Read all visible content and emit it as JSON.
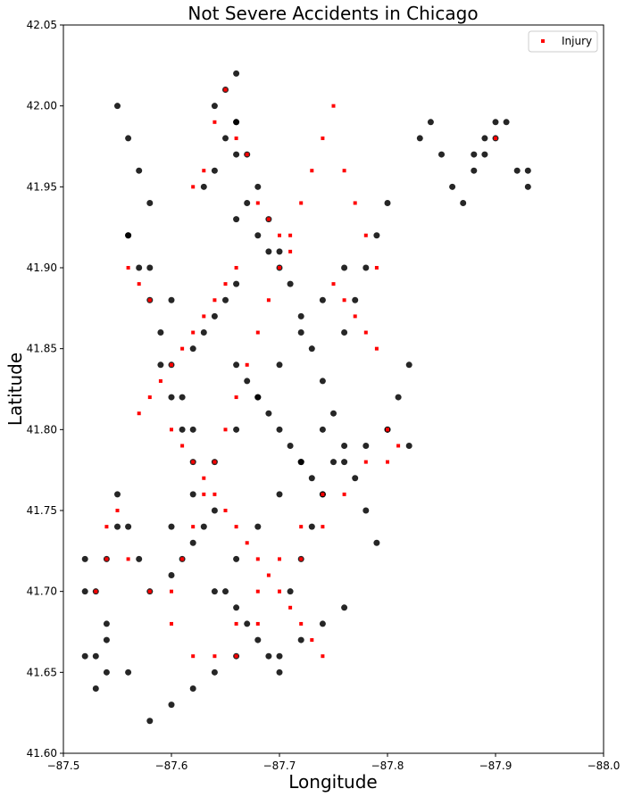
{
  "chart_data": {
    "type": "scatter",
    "title": "Not Severe Accidents in Chicago",
    "xlabel": "Longitude",
    "ylabel": "Latitude",
    "xlim": [
      -87.5,
      -88.0
    ],
    "ylim": [
      41.6,
      42.05
    ],
    "x_ticks": [
      -87.5,
      -87.6,
      -87.7,
      -87.8,
      -87.9,
      -88.0
    ],
    "x_tick_labels": [
      "−87.5",
      "−87.6",
      "−87.7",
      "−87.8",
      "−87.9",
      "−88.0"
    ],
    "y_ticks": [
      41.6,
      41.65,
      41.7,
      41.75,
      41.8,
      41.85,
      41.9,
      41.95,
      42.0,
      42.05
    ],
    "y_tick_labels": [
      "41.60",
      "41.65",
      "41.70",
      "41.75",
      "41.80",
      "41.85",
      "41.90",
      "41.95",
      "42.00",
      "42.05"
    ],
    "legend_position": "top-right",
    "grid": false,
    "series": [
      {
        "name": "",
        "role": "all accidents",
        "color": "#000000",
        "marker": "circle",
        "x": [
          -87.66,
          -87.65,
          -87.64,
          -87.66,
          -87.65,
          -87.66,
          -87.64,
          -87.63,
          -87.67,
          -87.66,
          -87.68,
          -87.69,
          -87.7,
          -87.66,
          -87.65,
          -87.64,
          -87.63,
          -87.62,
          -87.66,
          -87.67,
          -87.68,
          -87.69,
          -87.7,
          -87.71,
          -87.72,
          -87.73,
          -87.74,
          -87.64,
          -87.63,
          -87.62,
          -87.61,
          -87.6,
          -87.65,
          -87.66,
          -87.67,
          -87.68,
          -87.69,
          -87.7,
          -87.71,
          -87.72,
          -87.73,
          -87.74,
          -87.75,
          -87.62,
          -87.61,
          -87.6,
          -87.59,
          -87.58,
          -87.57,
          -87.56,
          -87.58,
          -87.57,
          -87.56,
          -87.55,
          -87.58,
          -87.57,
          -87.56,
          -87.55,
          -87.54,
          -87.53,
          -87.52,
          -87.53,
          -87.54,
          -87.55,
          -87.54,
          -87.53,
          -87.52,
          -87.62,
          -87.61,
          -87.6,
          -87.59,
          -87.66,
          -87.67,
          -87.68,
          -87.69,
          -87.7,
          -87.71,
          -87.72,
          -87.73,
          -87.74,
          -87.75,
          -87.76,
          -87.77,
          -87.78,
          -87.79,
          -87.8,
          -87.81,
          -87.82,
          -87.76,
          -87.77,
          -87.78,
          -87.79,
          -87.8,
          -87.83,
          -87.84,
          -87.85,
          -87.86,
          -87.87,
          -87.88,
          -87.89,
          -87.9,
          -87.91,
          -87.92,
          -87.93,
          -87.76,
          -87.78,
          -87.8,
          -87.82,
          -87.93,
          -87.88,
          -87.89,
          -87.9,
          -87.7,
          -87.72,
          -87.74,
          -87.76,
          -87.66,
          -87.64,
          -87.62,
          -87.6,
          -87.58,
          -87.56,
          -87.54,
          -87.52,
          -87.6,
          -87.62,
          -87.64,
          -87.66,
          -87.68,
          -87.7,
          -87.72,
          -87.74,
          -87.76,
          -87.64,
          -87.66,
          -87.68,
          -87.7,
          -87.72,
          -87.74,
          -87.6,
          -87.58,
          -87.56
        ],
        "y": [
          42.02,
          42.01,
          42.0,
          41.99,
          41.98,
          41.97,
          41.96,
          41.95,
          41.94,
          41.93,
          41.92,
          41.91,
          41.9,
          41.89,
          41.88,
          41.87,
          41.86,
          41.85,
          41.84,
          41.83,
          41.82,
          41.81,
          41.8,
          41.79,
          41.78,
          41.77,
          41.76,
          41.75,
          41.74,
          41.73,
          41.72,
          41.71,
          41.7,
          41.69,
          41.68,
          41.67,
          41.66,
          41.65,
          41.7,
          41.72,
          41.74,
          41.76,
          41.78,
          41.8,
          41.82,
          41.84,
          41.86,
          41.88,
          41.9,
          41.92,
          41.94,
          41.96,
          41.98,
          42.0,
          41.7,
          41.72,
          41.74,
          41.76,
          41.68,
          41.66,
          41.66,
          41.7,
          41.72,
          41.74,
          41.65,
          41.64,
          41.7,
          41.78,
          41.8,
          41.82,
          41.84,
          41.99,
          41.97,
          41.95,
          41.93,
          41.91,
          41.89,
          41.87,
          41.85,
          41.83,
          41.81,
          41.79,
          41.77,
          41.75,
          41.73,
          41.8,
          41.82,
          41.84,
          41.86,
          41.88,
          41.9,
          41.92,
          41.94,
          41.98,
          41.99,
          41.97,
          41.95,
          41.94,
          41.96,
          41.97,
          41.98,
          41.99,
          41.96,
          41.95,
          41.78,
          41.79,
          41.8,
          41.79,
          41.96,
          41.97,
          41.98,
          41.99,
          41.66,
          41.67,
          41.68,
          41.69,
          41.66,
          41.65,
          41.64,
          41.63,
          41.62,
          41.65,
          41.67,
          41.72,
          41.74,
          41.76,
          41.78,
          41.8,
          41.82,
          41.84,
          41.86,
          41.88,
          41.9,
          41.7,
          41.72,
          41.74,
          41.76,
          41.78,
          41.8,
          41.88,
          41.9,
          41.92
        ]
      },
      {
        "name": "Injury",
        "color": "#ff0000",
        "marker": "square",
        "x": [
          -87.65,
          -87.64,
          -87.66,
          -87.67,
          -87.63,
          -87.62,
          -87.68,
          -87.69,
          -87.7,
          -87.71,
          -87.66,
          -87.65,
          -87.64,
          -87.63,
          -87.62,
          -87.61,
          -87.6,
          -87.59,
          -87.58,
          -87.57,
          -87.6,
          -87.61,
          -87.62,
          -87.63,
          -87.64,
          -87.65,
          -87.66,
          -87.67,
          -87.68,
          -87.69,
          -87.7,
          -87.71,
          -87.72,
          -87.73,
          -87.74,
          -87.75,
          -87.76,
          -87.77,
          -87.78,
          -87.79,
          -87.8,
          -87.58,
          -87.57,
          -87.56,
          -87.55,
          -87.54,
          -87.53,
          -87.6,
          -87.61,
          -87.62,
          -87.63,
          -87.64,
          -87.65,
          -87.66,
          -87.67,
          -87.68,
          -87.69,
          -87.7,
          -87.71,
          -87.72,
          -87.73,
          -87.74,
          -87.75,
          -87.76,
          -87.77,
          -87.78,
          -87.79,
          -87.8,
          -87.81,
          -87.66,
          -87.68,
          -87.7,
          -87.72,
          -87.74,
          -87.76,
          -87.78,
          -87.8,
          -87.62,
          -87.6,
          -87.58,
          -87.56,
          -87.54,
          -87.64,
          -87.66,
          -87.68,
          -87.7,
          -87.72,
          -87.74,
          -87.9
        ],
        "y": [
          42.01,
          41.99,
          41.98,
          41.97,
          41.96,
          41.95,
          41.94,
          41.93,
          41.92,
          41.91,
          41.9,
          41.89,
          41.88,
          41.87,
          41.86,
          41.85,
          41.84,
          41.83,
          41.82,
          41.81,
          41.8,
          41.79,
          41.78,
          41.77,
          41.76,
          41.75,
          41.74,
          41.73,
          41.72,
          41.71,
          41.7,
          41.69,
          41.68,
          41.67,
          41.66,
          41.89,
          41.88,
          41.87,
          41.86,
          41.85,
          41.78,
          41.88,
          41.89,
          41.9,
          41.75,
          41.72,
          41.7,
          41.7,
          41.72,
          41.74,
          41.76,
          41.78,
          41.8,
          41.82,
          41.84,
          41.86,
          41.88,
          41.9,
          41.92,
          41.94,
          41.96,
          41.98,
          42.0,
          41.96,
          41.94,
          41.92,
          41.9,
          41.8,
          41.79,
          41.66,
          41.68,
          41.7,
          41.72,
          41.74,
          41.76,
          41.78,
          41.8,
          41.66,
          41.68,
          41.7,
          41.72,
          41.74,
          41.66,
          41.68,
          41.7,
          41.72,
          41.74,
          41.76,
          41.98
        ]
      }
    ]
  }
}
